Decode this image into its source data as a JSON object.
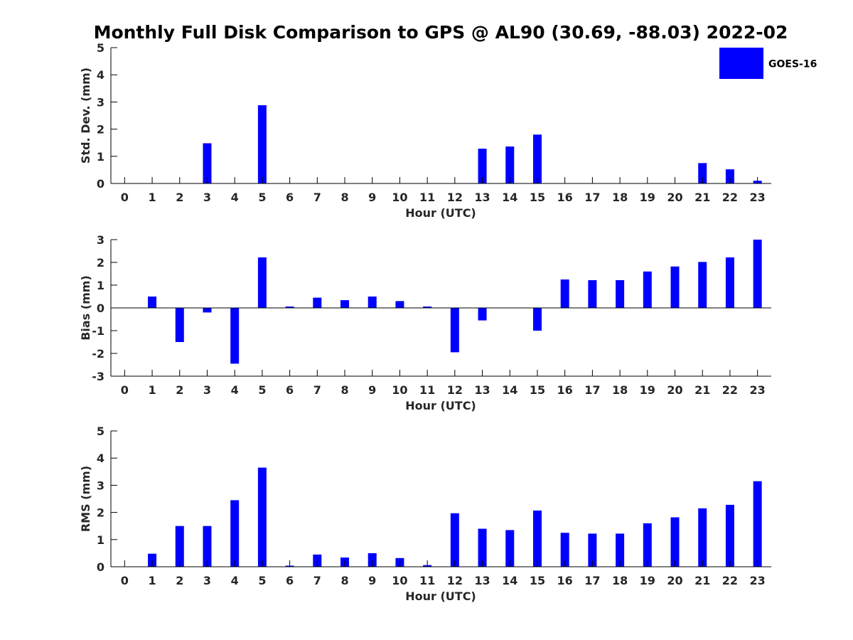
{
  "chart_data": {
    "title": "Monthly Full Disk Comparison to GPS @ AL90 (30.69, -88.03) 2022-02",
    "legend": {
      "label": "GOES-16",
      "color": "#0000ff",
      "placement": "top-right"
    },
    "subplots": [
      {
        "type": "bar",
        "ylabel": "Std. Dev. (mm)",
        "xlabel": "Hour (UTC)",
        "ylim": [
          0,
          5
        ],
        "yticks": [
          0,
          1,
          2,
          3,
          4,
          5
        ],
        "categories": [
          "0",
          "1",
          "2",
          "3",
          "4",
          "5",
          "6",
          "7",
          "8",
          "9",
          "10",
          "11",
          "12",
          "13",
          "14",
          "15",
          "16",
          "17",
          "18",
          "19",
          "20",
          "21",
          "22",
          "23"
        ],
        "values": [
          0,
          0,
          0,
          1.48,
          0,
          2.88,
          0,
          0,
          0,
          0,
          0,
          0,
          0,
          1.28,
          1.36,
          1.8,
          0,
          0,
          0,
          0,
          0,
          0.75,
          0.52,
          0.1
        ]
      },
      {
        "type": "bar",
        "ylabel": "Bias (mm)",
        "xlabel": "Hour (UTC)",
        "ylim": [
          -3,
          3
        ],
        "yticks": [
          -3,
          -2,
          -1,
          0,
          1,
          2,
          3
        ],
        "categories": [
          "0",
          "1",
          "2",
          "3",
          "4",
          "5",
          "6",
          "7",
          "8",
          "9",
          "10",
          "11",
          "12",
          "13",
          "14",
          "15",
          "16",
          "17",
          "18",
          "19",
          "20",
          "21",
          "22",
          "23"
        ],
        "values": [
          0,
          0.5,
          -1.5,
          -0.2,
          -2.45,
          2.22,
          0.06,
          0.45,
          0.34,
          0.5,
          0.3,
          0.06,
          -1.95,
          -0.55,
          0,
          -1.0,
          1.25,
          1.22,
          1.22,
          1.6,
          1.82,
          2.02,
          2.22,
          3.0
        ]
      },
      {
        "type": "bar",
        "ylabel": "RMS (mm)",
        "xlabel": "Hour (UTC)",
        "ylim": [
          0,
          5
        ],
        "yticks": [
          0,
          1,
          2,
          3,
          4,
          5
        ],
        "categories": [
          "0",
          "1",
          "2",
          "3",
          "4",
          "5",
          "6",
          "7",
          "8",
          "9",
          "10",
          "11",
          "12",
          "13",
          "14",
          "15",
          "16",
          "17",
          "18",
          "19",
          "20",
          "21",
          "22",
          "23"
        ],
        "values": [
          0,
          0.48,
          1.5,
          1.5,
          2.45,
          3.65,
          0.04,
          0.45,
          0.34,
          0.5,
          0.32,
          0.06,
          1.97,
          1.4,
          1.35,
          2.07,
          1.25,
          1.22,
          1.22,
          1.6,
          1.82,
          2.15,
          2.28,
          3.15
        ]
      }
    ]
  }
}
